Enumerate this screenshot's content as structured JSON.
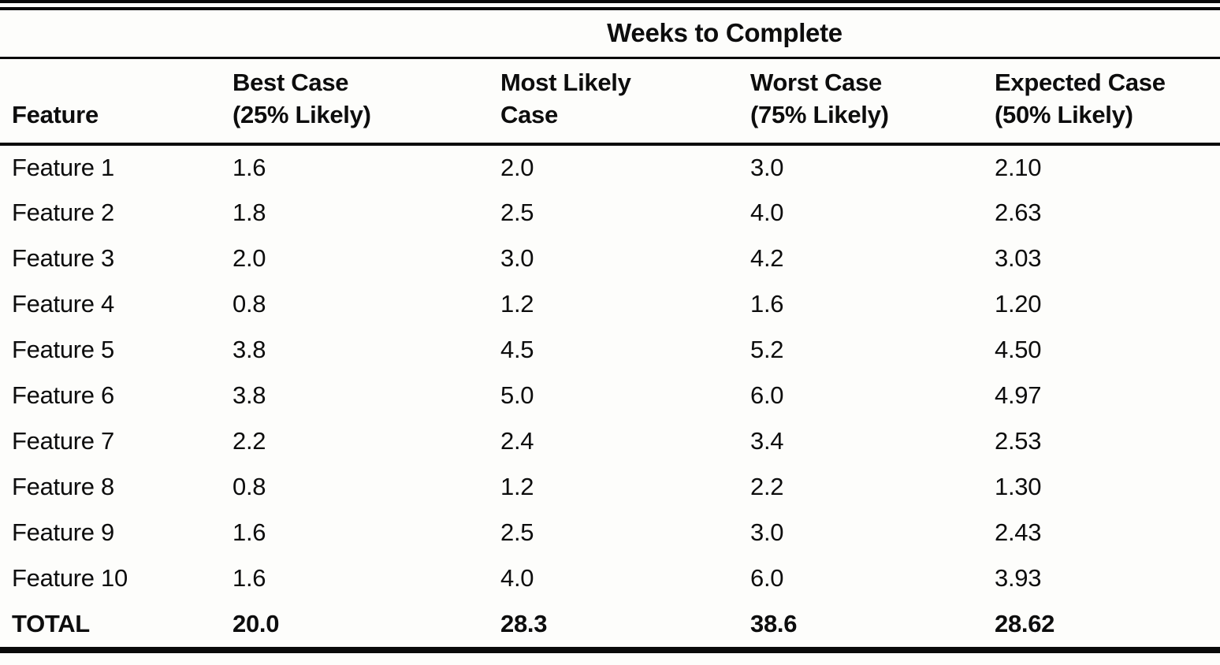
{
  "page": {
    "background_color": "#fdfdfb",
    "ink_color": "#0d0d0d"
  },
  "table": {
    "title": "Weeks to Complete",
    "feature_header": "Feature",
    "columns": [
      {
        "line1": "Best Case",
        "line2": "(25% Likely)"
      },
      {
        "line1": "Most Likely",
        "line2": "Case"
      },
      {
        "line1": "Worst Case",
        "line2": "(75% Likely)"
      },
      {
        "line1": "Expected Case",
        "line2": "(50% Likely)"
      }
    ],
    "rows": [
      {
        "feature": "Feature 1",
        "best": "1.6",
        "most_likely": "2.0",
        "worst": "3.0",
        "expected": "2.10"
      },
      {
        "feature": "Feature 2",
        "best": "1.8",
        "most_likely": "2.5",
        "worst": "4.0",
        "expected": "2.63"
      },
      {
        "feature": "Feature 3",
        "best": "2.0",
        "most_likely": "3.0",
        "worst": "4.2",
        "expected": "3.03"
      },
      {
        "feature": "Feature 4",
        "best": "0.8",
        "most_likely": "1.2",
        "worst": "1.6",
        "expected": "1.20"
      },
      {
        "feature": "Feature 5",
        "best": "3.8",
        "most_likely": "4.5",
        "worst": "5.2",
        "expected": "4.50"
      },
      {
        "feature": "Feature 6",
        "best": "3.8",
        "most_likely": "5.0",
        "worst": "6.0",
        "expected": "4.97"
      },
      {
        "feature": "Feature 7",
        "best": "2.2",
        "most_likely": "2.4",
        "worst": "3.4",
        "expected": "2.53"
      },
      {
        "feature": "Feature 8",
        "best": "0.8",
        "most_likely": "1.2",
        "worst": "2.2",
        "expected": "1.30"
      },
      {
        "feature": "Feature 9",
        "best": "1.6",
        "most_likely": "2.5",
        "worst": "3.0",
        "expected": "2.43"
      },
      {
        "feature": "Feature 10",
        "best": "1.6",
        "most_likely": "4.0",
        "worst": "6.0",
        "expected": "3.93"
      }
    ],
    "total": {
      "feature": "TOTAL",
      "best": "20.0",
      "most_likely": "28.3",
      "worst": "38.6",
      "expected": "28.62"
    }
  }
}
